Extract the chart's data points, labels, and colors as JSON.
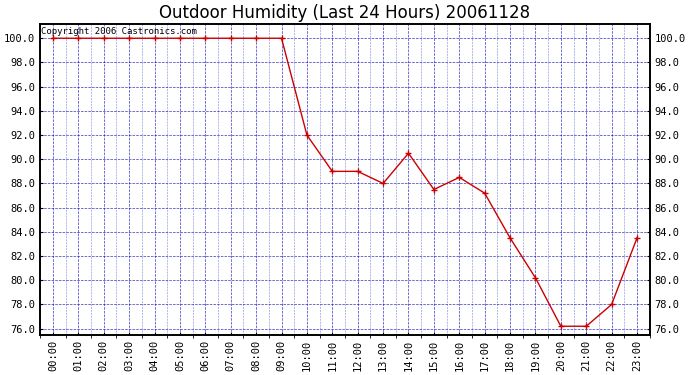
{
  "title": "Outdoor Humidity (Last 24 Hours) 20061128",
  "copyright_text": "Copyright 2006 Castronics.com",
  "x_labels": [
    "00:00",
    "01:00",
    "02:00",
    "03:00",
    "04:00",
    "05:00",
    "06:00",
    "07:00",
    "08:00",
    "09:00",
    "10:00",
    "11:00",
    "12:00",
    "13:00",
    "14:00",
    "15:00",
    "16:00",
    "17:00",
    "18:00",
    "19:00",
    "20:00",
    "21:00",
    "22:00",
    "23:00"
  ],
  "x_values": [
    0,
    1,
    2,
    3,
    4,
    5,
    6,
    7,
    8,
    9,
    10,
    11,
    12,
    13,
    14,
    15,
    16,
    17,
    18,
    19,
    20,
    21,
    22,
    23
  ],
  "y_values": [
    100.0,
    100.0,
    100.0,
    100.0,
    100.0,
    100.0,
    100.0,
    100.0,
    100.0,
    100.0,
    92.0,
    89.0,
    89.0,
    88.0,
    90.5,
    87.5,
    88.5,
    87.2,
    83.5,
    80.2,
    76.2,
    76.2,
    78.0,
    83.5
  ],
  "ylim_min": 75.5,
  "ylim_max": 101.2,
  "yticks": [
    76.0,
    78.0,
    80.0,
    82.0,
    84.0,
    86.0,
    88.0,
    90.0,
    92.0,
    94.0,
    96.0,
    98.0,
    100.0
  ],
  "line_color": "#cc0000",
  "marker_color": "#cc0000",
  "plot_bg_color": "#ffffff",
  "fig_bg_color": "#ffffff",
  "grid_color": "#0000bb",
  "border_color": "#000000",
  "title_fontsize": 12,
  "tick_fontsize": 7.5,
  "copyright_fontsize": 6.5,
  "xlim_left": -0.5,
  "xlim_right": 23.5
}
